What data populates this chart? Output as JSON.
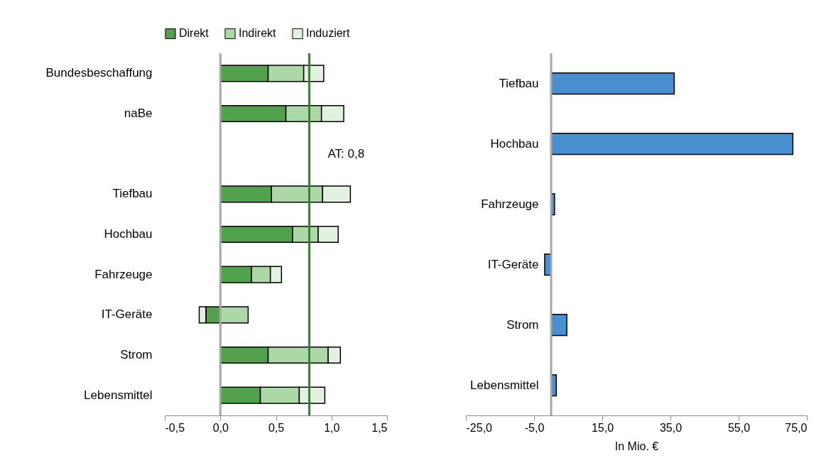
{
  "chart_data": [
    {
      "type": "bar",
      "orientation": "horizontal",
      "stacked": true,
      "legend": "top",
      "categories": [
        "Bundesbeschaffung",
        "naBe",
        null,
        "Tiefbau",
        "Hochbau",
        "Fahrzeuge",
        "IT-Geräte",
        "Strom",
        "Lebensmittel"
      ],
      "series": [
        {
          "name": "Direkt",
          "color": "#52a14d",
          "values": [
            0.43,
            0.59,
            null,
            0.46,
            0.65,
            0.28,
            -0.13,
            0.43,
            0.36
          ]
        },
        {
          "name": "Indirekt",
          "color": "#acd8a8",
          "values": [
            0.32,
            0.32,
            null,
            0.46,
            0.23,
            0.17,
            0.25,
            0.54,
            0.35
          ]
        },
        {
          "name": "Induziert",
          "color": "#e3f1e0",
          "values": [
            0.18,
            0.2,
            null,
            0.25,
            0.18,
            0.1,
            -0.06,
            0.11,
            0.23
          ]
        }
      ],
      "xlim": [
        -0.5,
        1.5
      ],
      "xticks": [
        {
          "value": -0.5,
          "label": "-0,5"
        },
        {
          "value": 0,
          "label": "0,0"
        },
        {
          "value": 0.5,
          "label": "0,5"
        },
        {
          "value": 1,
          "label": "1,0"
        },
        {
          "value": 1.5,
          "label": "1,5"
        }
      ],
      "ref_lines": [
        {
          "axis": "x",
          "value": 0,
          "color": "#a6a6a6"
        },
        {
          "axis": "x",
          "value": 0.8,
          "label": "AT: 0,8",
          "color": "#3f7a3c"
        }
      ]
    },
    {
      "type": "bar",
      "orientation": "horizontal",
      "categories": [
        "Tiefbau",
        "Hochbau",
        "Fahrzeuge",
        "IT-Geräte",
        "Strom",
        "Lebensmittel"
      ],
      "color": "#4a90d0",
      "values": [
        36.1,
        70.9,
        1.0,
        -1.9,
        4.6,
        1.5
      ],
      "xlim": [
        -25,
        75
      ],
      "xticks": [
        {
          "value": -25,
          "label": "-25,0"
        },
        {
          "value": -5,
          "label": "-5,0"
        },
        {
          "value": 15,
          "label": "15,0"
        },
        {
          "value": 35,
          "label": "35,0"
        },
        {
          "value": 55,
          "label": "55,0"
        },
        {
          "value": 75,
          "label": "75,0"
        }
      ],
      "xlabel": "In Mio. €",
      "ref_lines": [
        {
          "axis": "x",
          "value": 0,
          "color": "#a6a6a6"
        }
      ]
    }
  ]
}
